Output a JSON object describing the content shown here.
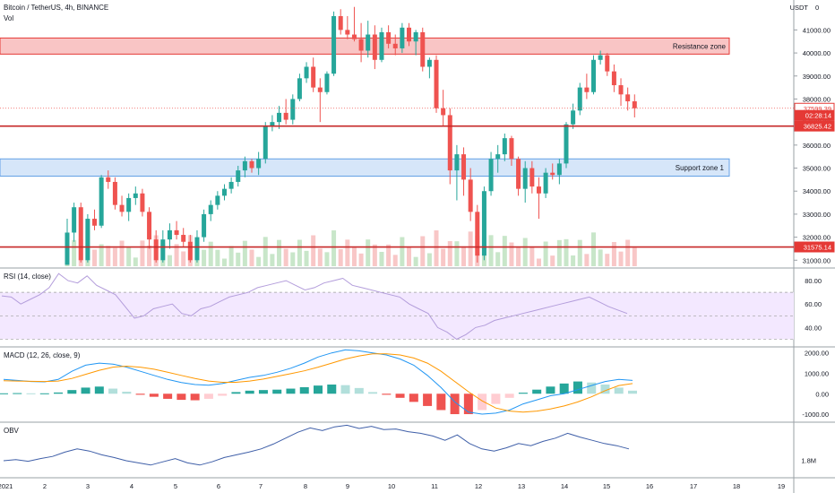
{
  "header": {
    "symbol": "Bitcoin / TetherUS, 4h, BINANCE",
    "volume_label": "Vol",
    "currency_label": "USDT",
    "currency_value": "0"
  },
  "colors": {
    "up": "#26a69a",
    "down": "#ef5350",
    "vol_up": "#c8e6c9",
    "vol_down": "#f8c7c7",
    "resistance_fill": "#f9c5c5",
    "resistance_border": "#e53935",
    "support_fill": "#d6e6f9",
    "support_border": "#64a0e6",
    "hline": "#c62828",
    "rsi_line": "#b39ddb",
    "rsi_band": "#f3e8ff",
    "macd_line": "#2196f3",
    "signal_line": "#ff9800",
    "obv_line": "#3f5fa8"
  },
  "zones": {
    "resistance": {
      "label": "Resistance zone",
      "low": 39950,
      "high": 40650
    },
    "support": {
      "label": "Support zone 1",
      "low": 34650,
      "high": 35400
    }
  },
  "price_tags": [
    {
      "text": "37599.39",
      "value": 37599.39,
      "style": "outline"
    },
    {
      "text": "02:28:14",
      "value": 37290,
      "style": "red"
    },
    {
      "text": "36825.42",
      "value": 36825.42,
      "style": "red"
    },
    {
      "text": "31575.14",
      "value": 31575.14,
      "style": "red"
    }
  ],
  "horizontal_levels": [
    36825.42,
    31575.14
  ],
  "chart_data": [
    {
      "type": "candlestick",
      "title": "Bitcoin / TetherUS, 4h, BINANCE",
      "ylim": [
        30700,
        42300
      ],
      "y_ticks": [
        "31000.00",
        "32000.00",
        "33000.00",
        "34000.00",
        "35000.00",
        "36000.00",
        "37000.00",
        "38000.00",
        "39000.00",
        "40000.00",
        "41000.00"
      ],
      "y_tick_values": [
        31000,
        32000,
        33000,
        34000,
        35000,
        36000,
        37000,
        38000,
        39000,
        40000,
        41000
      ],
      "x_ticks": [
        "2021",
        "2",
        "3",
        "4",
        "5",
        "6",
        "7",
        "8",
        "9",
        "10",
        "11",
        "12",
        "13",
        "14",
        "15",
        "16",
        "17",
        "18",
        "19"
      ],
      "candles": [
        {
          "o": 30800,
          "h": 32800,
          "l": 30800,
          "c": 32200
        },
        {
          "o": 32200,
          "h": 33500,
          "l": 31800,
          "c": 33300
        },
        {
          "o": 33300,
          "h": 33500,
          "l": 30900,
          "c": 31000
        },
        {
          "o": 31000,
          "h": 33000,
          "l": 30900,
          "c": 32800
        },
        {
          "o": 32800,
          "h": 33200,
          "l": 32300,
          "c": 32500
        },
        {
          "o": 32500,
          "h": 34700,
          "l": 32400,
          "c": 34600
        },
        {
          "o": 34600,
          "h": 34900,
          "l": 34100,
          "c": 34400
        },
        {
          "o": 34400,
          "h": 34600,
          "l": 33200,
          "c": 33400
        },
        {
          "o": 33400,
          "h": 33800,
          "l": 32900,
          "c": 33100
        },
        {
          "o": 33100,
          "h": 33900,
          "l": 32700,
          "c": 33700
        },
        {
          "o": 33700,
          "h": 34200,
          "l": 33400,
          "c": 33900
        },
        {
          "o": 33900,
          "h": 34100,
          "l": 32900,
          "c": 33100
        },
        {
          "o": 33100,
          "h": 33300,
          "l": 31500,
          "c": 31900
        },
        {
          "o": 31900,
          "h": 32300,
          "l": 30900,
          "c": 31000
        },
        {
          "o": 31000,
          "h": 32300,
          "l": 30900,
          "c": 31900
        },
        {
          "o": 31900,
          "h": 32600,
          "l": 31500,
          "c": 32300
        },
        {
          "o": 32300,
          "h": 32700,
          "l": 31900,
          "c": 32100
        },
        {
          "o": 32100,
          "h": 32400,
          "l": 31600,
          "c": 31800
        },
        {
          "o": 31800,
          "h": 32100,
          "l": 30900,
          "c": 31000
        },
        {
          "o": 31000,
          "h": 32300,
          "l": 30900,
          "c": 32000
        },
        {
          "o": 32000,
          "h": 33200,
          "l": 31800,
          "c": 33000
        },
        {
          "o": 33000,
          "h": 33600,
          "l": 32700,
          "c": 33400
        },
        {
          "o": 33400,
          "h": 34000,
          "l": 33200,
          "c": 33800
        },
        {
          "o": 33800,
          "h": 34300,
          "l": 33600,
          "c": 34100
        },
        {
          "o": 34100,
          "h": 34600,
          "l": 33900,
          "c": 34400
        },
        {
          "o": 34400,
          "h": 35100,
          "l": 34200,
          "c": 34900
        },
        {
          "o": 34900,
          "h": 35500,
          "l": 34600,
          "c": 35300
        },
        {
          "o": 35300,
          "h": 35400,
          "l": 34800,
          "c": 35000
        },
        {
          "o": 35000,
          "h": 35700,
          "l": 34700,
          "c": 35400
        },
        {
          "o": 35400,
          "h": 37000,
          "l": 35200,
          "c": 36800
        },
        {
          "o": 36800,
          "h": 37300,
          "l": 36600,
          "c": 37000
        },
        {
          "o": 37000,
          "h": 37700,
          "l": 36700,
          "c": 37400
        },
        {
          "o": 37400,
          "h": 38000,
          "l": 36900,
          "c": 37100
        },
        {
          "o": 37100,
          "h": 38200,
          "l": 36900,
          "c": 38000
        },
        {
          "o": 38000,
          "h": 39100,
          "l": 37900,
          "c": 38900
        },
        {
          "o": 38900,
          "h": 39600,
          "l": 38700,
          "c": 39400
        },
        {
          "o": 39400,
          "h": 39800,
          "l": 38300,
          "c": 38500
        },
        {
          "o": 38500,
          "h": 38900,
          "l": 37000,
          "c": 38300
        },
        {
          "o": 38300,
          "h": 39200,
          "l": 38200,
          "c": 39100
        },
        {
          "o": 39100,
          "h": 41800,
          "l": 39000,
          "c": 41600
        },
        {
          "o": 41600,
          "h": 41900,
          "l": 40800,
          "c": 41000
        },
        {
          "o": 41000,
          "h": 41600,
          "l": 40600,
          "c": 40800
        },
        {
          "o": 40800,
          "h": 42000,
          "l": 40500,
          "c": 40600
        },
        {
          "o": 40600,
          "h": 41300,
          "l": 39600,
          "c": 40100
        },
        {
          "o": 40100,
          "h": 41400,
          "l": 39800,
          "c": 40800
        },
        {
          "o": 40800,
          "h": 41200,
          "l": 39300,
          "c": 39700
        },
        {
          "o": 39700,
          "h": 41100,
          "l": 39600,
          "c": 40900
        },
        {
          "o": 40900,
          "h": 41200,
          "l": 40200,
          "c": 40400
        },
        {
          "o": 40400,
          "h": 40800,
          "l": 39900,
          "c": 40200
        },
        {
          "o": 40200,
          "h": 41300,
          "l": 40000,
          "c": 41100
        },
        {
          "o": 41100,
          "h": 41300,
          "l": 40300,
          "c": 40500
        },
        {
          "o": 40500,
          "h": 41000,
          "l": 39900,
          "c": 40900
        },
        {
          "o": 40900,
          "h": 41100,
          "l": 39200,
          "c": 39400
        },
        {
          "o": 39400,
          "h": 39800,
          "l": 38900,
          "c": 39700
        },
        {
          "o": 39700,
          "h": 39900,
          "l": 37400,
          "c": 37600
        },
        {
          "o": 37600,
          "h": 38400,
          "l": 36800,
          "c": 37300
        },
        {
          "o": 37300,
          "h": 37600,
          "l": 34300,
          "c": 34900
        },
        {
          "o": 34900,
          "h": 36000,
          "l": 33600,
          "c": 35600
        },
        {
          "o": 35600,
          "h": 35900,
          "l": 33800,
          "c": 34500
        },
        {
          "o": 34500,
          "h": 35000,
          "l": 32700,
          "c": 33100
        },
        {
          "o": 33100,
          "h": 33400,
          "l": 30900,
          "c": 31200
        },
        {
          "o": 31200,
          "h": 34200,
          "l": 31000,
          "c": 34000
        },
        {
          "o": 34000,
          "h": 35700,
          "l": 33800,
          "c": 35400
        },
        {
          "o": 35400,
          "h": 36000,
          "l": 34800,
          "c": 35600
        },
        {
          "o": 35600,
          "h": 36500,
          "l": 35300,
          "c": 36300
        },
        {
          "o": 36300,
          "h": 36400,
          "l": 35100,
          "c": 35400
        },
        {
          "o": 35400,
          "h": 35500,
          "l": 33800,
          "c": 34100
        },
        {
          "o": 34100,
          "h": 35300,
          "l": 33500,
          "c": 35000
        },
        {
          "o": 35000,
          "h": 35300,
          "l": 33900,
          "c": 34200
        },
        {
          "o": 34200,
          "h": 34600,
          "l": 32800,
          "c": 33900
        },
        {
          "o": 33900,
          "h": 35000,
          "l": 33700,
          "c": 34800
        },
        {
          "o": 34800,
          "h": 35200,
          "l": 34500,
          "c": 34700
        },
        {
          "o": 34700,
          "h": 35400,
          "l": 34300,
          "c": 35200
        },
        {
          "o": 35200,
          "h": 37000,
          "l": 35000,
          "c": 36900
        },
        {
          "o": 36900,
          "h": 37800,
          "l": 36700,
          "c": 37500
        },
        {
          "o": 37500,
          "h": 38700,
          "l": 37300,
          "c": 38500
        },
        {
          "o": 38500,
          "h": 39100,
          "l": 38000,
          "c": 38300
        },
        {
          "o": 38300,
          "h": 39900,
          "l": 38200,
          "c": 39700
        },
        {
          "o": 39700,
          "h": 40100,
          "l": 39500,
          "c": 39900
        },
        {
          "o": 39900,
          "h": 40000,
          "l": 39000,
          "c": 39200
        },
        {
          "o": 39200,
          "h": 39500,
          "l": 38300,
          "c": 38600
        },
        {
          "o": 38600,
          "h": 38900,
          "l": 37700,
          "c": 38200
        },
        {
          "o": 38200,
          "h": 38500,
          "l": 37500,
          "c": 37900
        },
        {
          "o": 37900,
          "h": 38200,
          "l": 37200,
          "c": 37599
        }
      ]
    },
    {
      "type": "line",
      "title": "RSI (14, close)",
      "ylim": [
        25,
        90
      ],
      "y_ticks": [
        "80.00",
        "60.00",
        "40.00"
      ],
      "y_tick_values": [
        80,
        60,
        40
      ],
      "band": [
        30,
        70
      ],
      "series": [
        {
          "values": [
            67,
            66,
            60,
            64,
            68,
            74,
            86,
            80,
            78,
            84,
            76,
            72,
            68,
            58,
            48,
            50,
            56,
            58,
            60,
            52,
            50,
            56,
            58,
            62,
            66,
            68,
            70,
            74,
            76,
            78,
            80,
            76,
            72,
            74,
            78,
            80,
            82,
            76,
            74,
            72,
            70,
            68,
            66,
            60,
            56,
            52,
            40,
            36,
            30,
            34,
            40,
            42,
            46,
            48,
            50,
            52,
            54,
            56,
            58,
            60,
            62,
            64,
            66,
            62,
            58,
            55,
            52
          ]
        }
      ]
    },
    {
      "type": "bar",
      "title": "MACD (12, 26, close, 9)",
      "ylim": [
        -1350,
        2250
      ],
      "y_ticks": [
        "2000.00",
        "1000.00",
        "0.00",
        "-1000.00"
      ],
      "y_tick_values": [
        2000,
        1000,
        0,
        -1000
      ],
      "series": [
        {
          "values": [
            700,
            650,
            600,
            580,
            700,
            1100,
            1400,
            1500,
            1450,
            1300,
            1100,
            900,
            700,
            550,
            450,
            420,
            500,
            650,
            800,
            900,
            1050,
            1250,
            1500,
            1800,
            2000,
            2150,
            2100,
            2000,
            1900,
            1700,
            1400,
            900,
            300,
            -400,
            -900,
            -1000,
            -950,
            -800,
            -500,
            -300,
            -100,
            0,
            200,
            400,
            600,
            700,
            650
          ]
        },
        {
          "values": [
            640,
            620,
            610,
            600,
            620,
            750,
            950,
            1150,
            1300,
            1350,
            1300,
            1200,
            1050,
            900,
            750,
            620,
            560,
            560,
            620,
            720,
            850,
            980,
            1120,
            1300,
            1500,
            1700,
            1850,
            1950,
            1950,
            1900,
            1750,
            1500,
            1100,
            600,
            100,
            -350,
            -700,
            -850,
            -900,
            -850,
            -750,
            -600,
            -400,
            -150,
            150,
            400,
            500
          ]
        },
        {
          "values": [
            20,
            30,
            20,
            20,
            60,
            180,
            300,
            350,
            250,
            100,
            -50,
            -150,
            -250,
            -300,
            -320,
            -250,
            -100,
            80,
            150,
            180,
            200,
            250,
            320,
            400,
            450,
            420,
            280,
            80,
            -50,
            -200,
            -400,
            -600,
            -800,
            -1000,
            -1000,
            -800,
            -500,
            -200,
            50,
            200,
            350,
            500,
            600,
            550,
            450,
            300,
            150
          ]
        }
      ]
    },
    {
      "type": "line",
      "title": "OBV",
      "ylim": [
        0,
        10
      ],
      "y_ticks": [
        "1.8M"
      ],
      "y_tick_values": [
        3.1
      ],
      "series": [
        {
          "values": [
            3,
            3.2,
            2.9,
            3.4,
            3.8,
            4.6,
            5.2,
            4.8,
            4.1,
            3.6,
            3,
            2.6,
            2.2,
            2.8,
            3.4,
            2.6,
            2.2,
            2.8,
            3.6,
            4.1,
            4.6,
            5.2,
            6.1,
            7.2,
            8.3,
            9.1,
            8.6,
            9.3,
            9.6,
            9.0,
            9.4,
            8.8,
            8.9,
            8.4,
            8.1,
            7.6,
            6.8,
            7.8,
            6.2,
            5.2,
            4.8,
            5.4,
            6.2,
            5.8,
            6.6,
            7.2,
            8.1,
            7.4,
            6.8,
            6.2,
            5.8,
            5.2
          ]
        }
      ]
    }
  ]
}
